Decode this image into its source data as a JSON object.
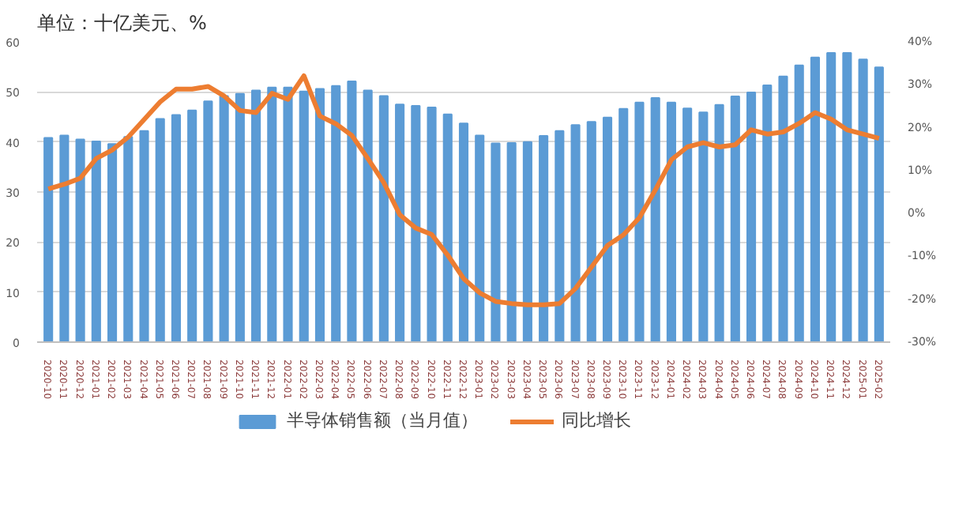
{
  "chart_data": {
    "type": "bar",
    "title": "单位：十亿美元、%",
    "categories": [
      "2020-10",
      "2020-11",
      "2020-12",
      "2021-01",
      "2021-02",
      "2021-03",
      "2021-04",
      "2021-05",
      "2021-06",
      "2021-07",
      "2021-08",
      "2021-09",
      "2021-10",
      "2021-11",
      "2021-12",
      "2022-01",
      "2022-02",
      "2022-03",
      "2022-04",
      "2022-05",
      "2022-06",
      "2022-07",
      "2022-08",
      "2022-09",
      "2022-10",
      "2022-11",
      "2022-12",
      "2023-01",
      "2023-02",
      "2023-03",
      "2023-04",
      "2023-05",
      "2023-06",
      "2023-07",
      "2023-08",
      "2023-09",
      "2023-10",
      "2023-11",
      "2023-12",
      "2024-01",
      "2024-02",
      "2024-03",
      "2024-04",
      "2024-05",
      "2024-06",
      "2024-07",
      "2024-08",
      "2024-09",
      "2024-10",
      "2024-11",
      "2024-12",
      "2025-01",
      "2025-02"
    ],
    "series": [
      {
        "name": "半导体销售额（当月值）",
        "color": "#5b9bd5",
        "values": [
          40.8,
          41.3,
          40.5,
          40.1,
          39.6,
          41.0,
          42.2,
          44.6,
          45.4,
          46.3,
          48.1,
          49.2,
          49.6,
          50.3,
          50.9,
          50.9,
          50.1,
          50.6,
          51.2,
          52.1,
          50.3,
          49.2,
          47.5,
          47.2,
          46.9,
          45.5,
          43.7,
          41.3,
          39.7,
          39.8,
          40.0,
          41.2,
          42.2,
          43.4,
          44.0,
          44.9,
          46.6,
          47.9,
          48.8,
          47.9,
          46.7,
          45.9,
          47.4,
          49.1,
          49.9,
          51.3,
          53.1,
          55.3,
          56.9,
          57.8,
          57.8,
          56.5,
          54.9
        ]
      },
      {
        "name": "同比增长",
        "type": "line",
        "axis": "y2",
        "color": "#ed7d31",
        "values": [
          5.7,
          6.8,
          8.2,
          12.8,
          14.8,
          17.8,
          21.9,
          26,
          29,
          29,
          29.6,
          27.4,
          24,
          23.5,
          28,
          26.6,
          32.1,
          22.7,
          20.9,
          18.2,
          12.8,
          7.2,
          -0.3,
          -3.4,
          -4.9,
          -9.7,
          -15.2,
          -18.5,
          -20.5,
          -21,
          -21.3,
          -21.3,
          -21,
          -17.5,
          -12.5,
          -7.5,
          -5,
          -1,
          5.5,
          12.5,
          15.5,
          16.5,
          15.5,
          16,
          19.5,
          18.5,
          19,
          21,
          23.5,
          22,
          19.5,
          18.5,
          17.5
        ]
      }
    ],
    "ylim": [
      0,
      60
    ],
    "yticks": [
      0,
      10,
      20,
      30,
      40,
      50,
      60
    ],
    "y2lim": [
      -30,
      40
    ],
    "y2ticks": [
      {
        "value": -30,
        "label": "-30%"
      },
      {
        "value": -20,
        "label": "-20%"
      },
      {
        "value": -10,
        "label": "-10%"
      },
      {
        "value": 0,
        "label": "0%"
      },
      {
        "value": 10,
        "label": "10%"
      },
      {
        "value": 20,
        "label": "20%"
      },
      {
        "value": 30,
        "label": "30%"
      },
      {
        "value": 40,
        "label": "40%"
      }
    ],
    "grid": "y",
    "legend": "bottom",
    "marker": "none",
    "line_style": "solid"
  }
}
